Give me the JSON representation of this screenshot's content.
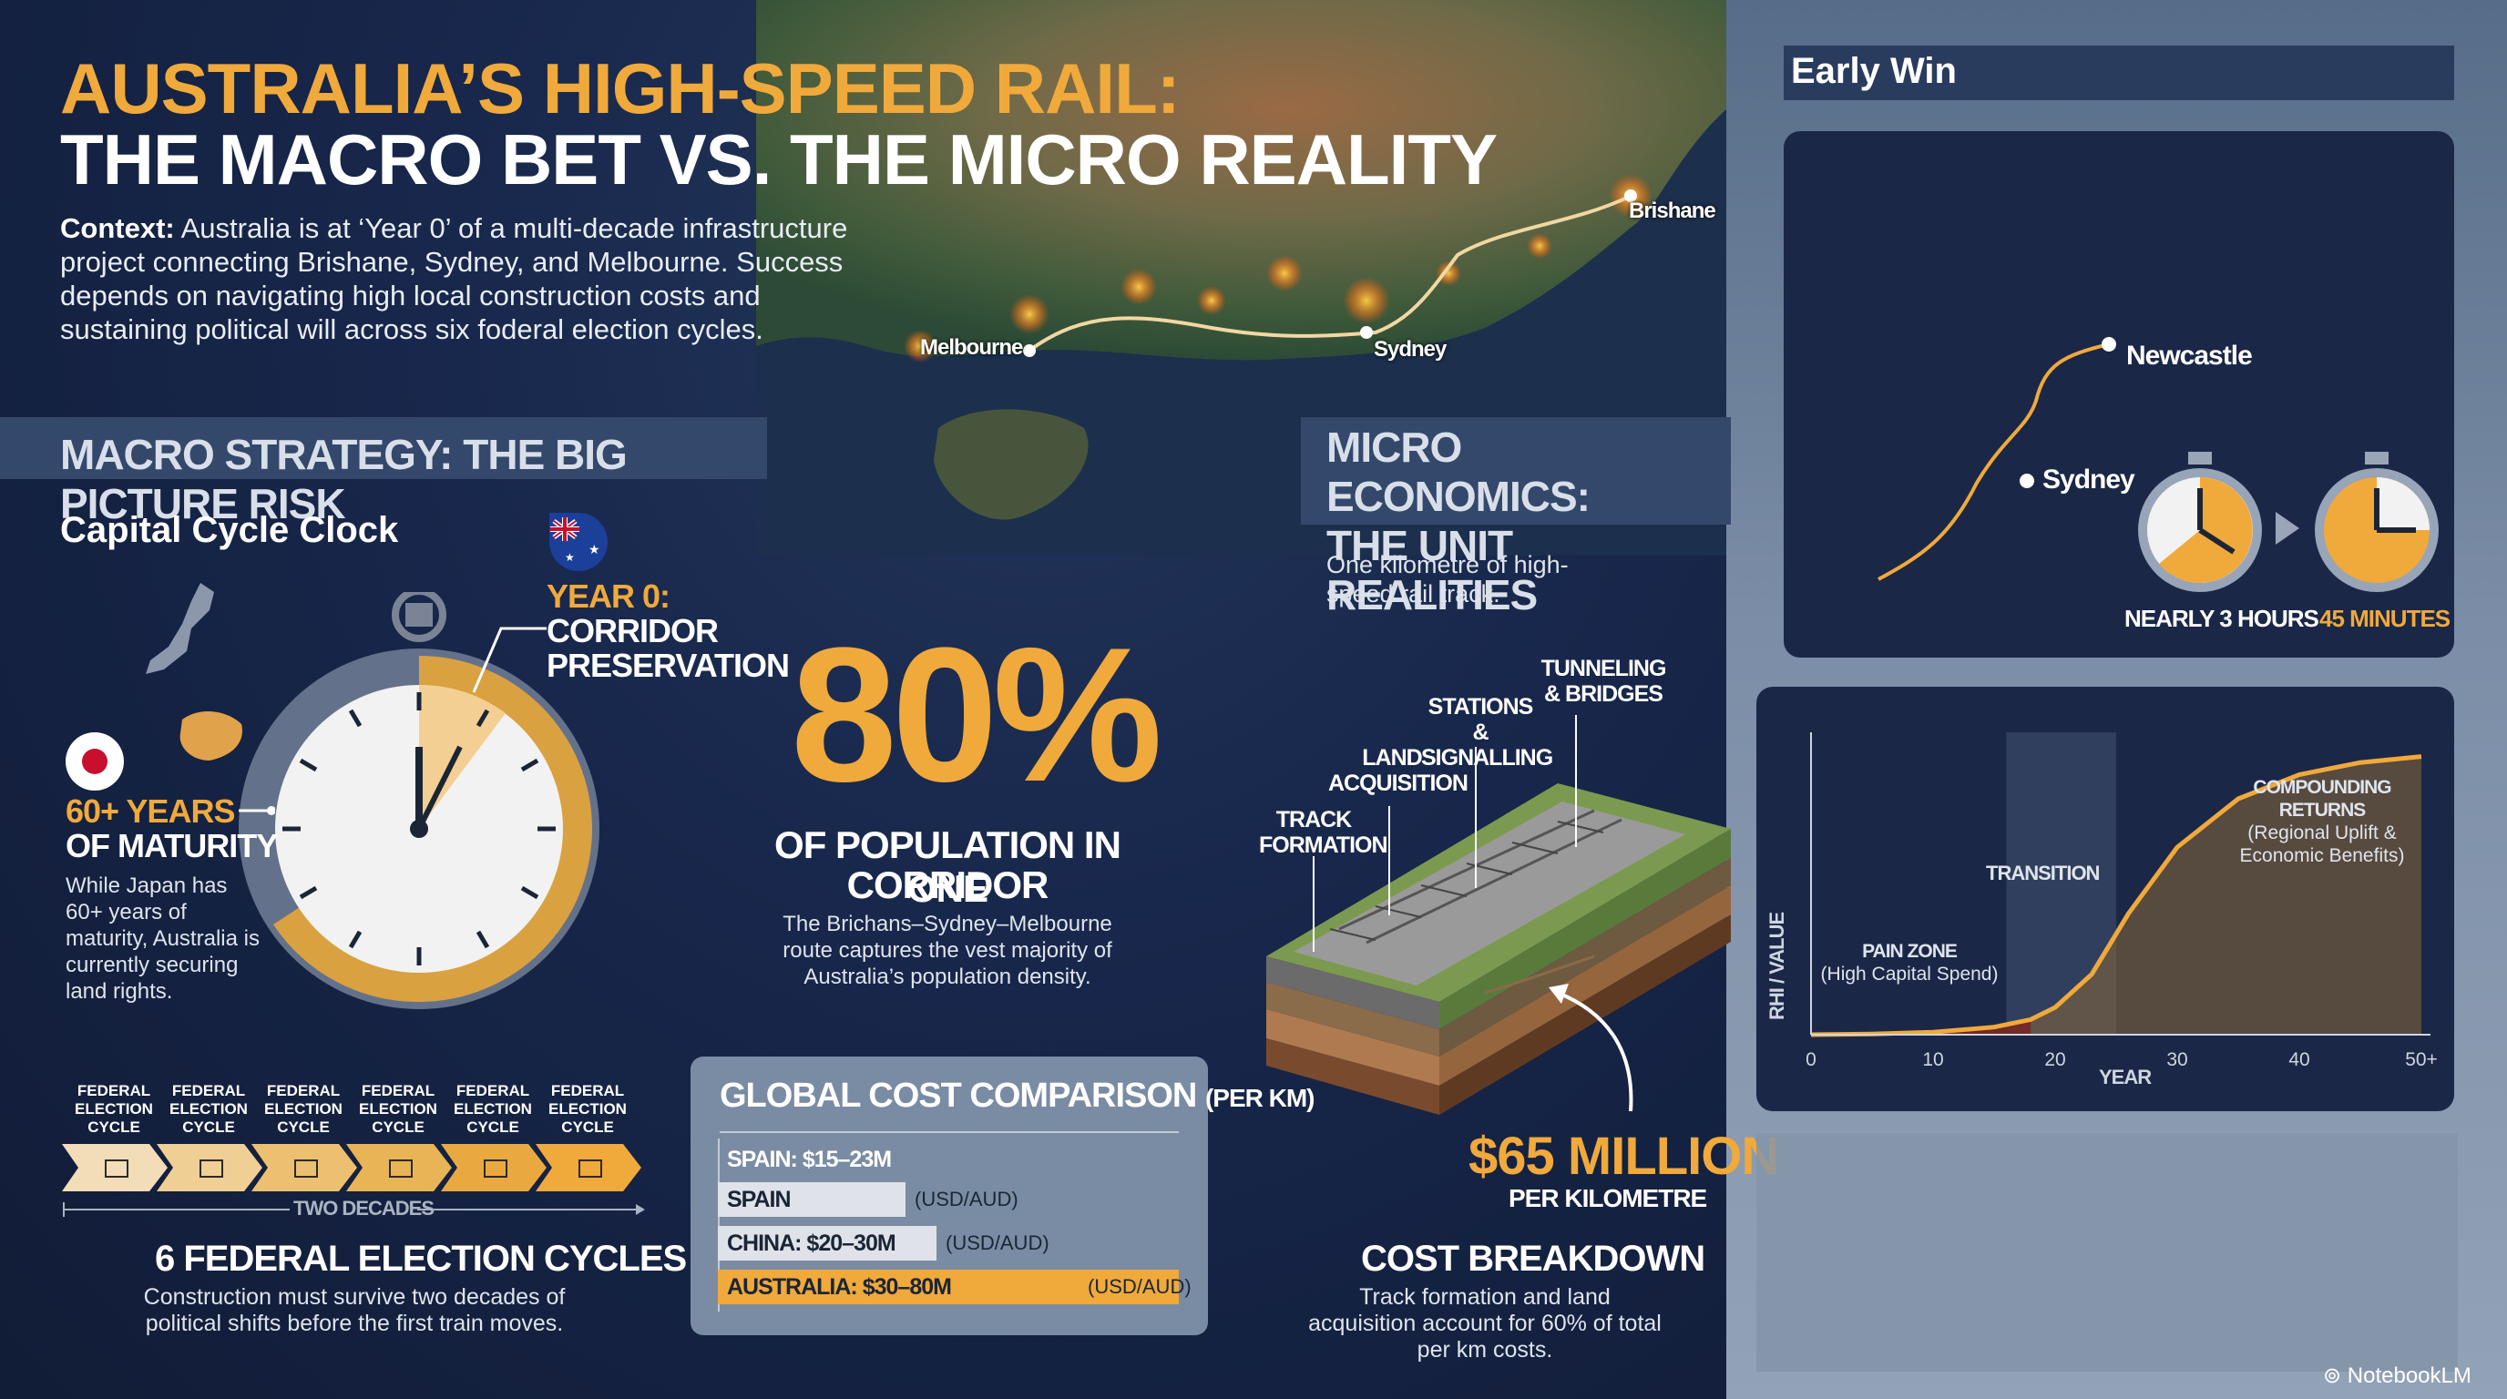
{
  "header": {
    "title_line1": "AUSTRALIA’S HIGH-SPEED RAIL:",
    "title_line2": "THE MACRO BET VS. THE MICRO REALITY",
    "context_label": "Context:",
    "context_text": " Australia is at ‘Year 0’ of a multi-decade infrastructure project connecting Brishane, Sydney, and Melbourne. Success depends on navigating high local construction costs and sustaining political will across six foderal election cycles."
  },
  "map": {
    "cities": [
      "Brishane",
      "Sydney",
      "Melbourne"
    ]
  },
  "macro": {
    "section_title": "MACRO STRATEGY: THE BIG PICTURE RISK",
    "clock_title": "Capital Cycle Clock",
    "year0_line1": "YEAR 0:",
    "year0_line2": "CORRIDOR",
    "year0_line3": "PRESERVATION",
    "japan_line1": "60+ YEARS",
    "japan_line2": "OF MATURITY",
    "japan_note": "While Japan has 60+ years of maturity, Australia is currently securing land rights.",
    "cycle_label_line1": "FEDERAL",
    "cycle_label_line2": "ELECTION",
    "cycle_label_line3": "CYCLE",
    "two_decades": "TWO DECADES",
    "cycles_title": "6 FEDERAL ELECTION CYCLES",
    "cycles_note": "Construction must survive two decades of political shifts before the first train moves."
  },
  "population": {
    "percent": "80%",
    "label_line1": "OF POPULATION IN ONE",
    "label_line2": "CORRIDOR",
    "note": "The Brichans–Sydney–Melbourne route captures the vest majority of Australia’s population density."
  },
  "cost_comparison": {
    "title": "GLOBAL COST COMPARISON",
    "title_suffix": "(PER KM)",
    "rows": [
      {
        "label": "SPAIN: $15–23M",
        "unit": ""
      },
      {
        "label": "SPAIN",
        "unit": "(USD/AUD)"
      },
      {
        "label": "CHINA: $20–30M",
        "unit": "(USD/AUD)"
      },
      {
        "label": "AUSTRALIA: $30–80M",
        "unit": "(USD/AUD)"
      }
    ]
  },
  "micro": {
    "section_line1": "MICRO ECONOMICS:",
    "section_line2": "THE UNIT REALITIES",
    "intro": "One kilometre of high-speed rail track.",
    "layers": [
      "TRACK FORMATION",
      "LAND ACQUISITION",
      "STATIONS & SIGNALLING",
      "TUNNELING & BRIDGES"
    ],
    "price": "$65 MILLION",
    "price_unit": "PER KILOMETRE",
    "breakdown_title": "COST BREAKDOWN",
    "breakdown_note": "Track formation and land acquisition account for 60% of total per km costs."
  },
  "early_win": {
    "title": "Early Win",
    "city_a": "Newcastle",
    "city_b": "Sydney",
    "time_before": "NEARLY 3 HOURS",
    "time_after": "45 MINUTES"
  },
  "chart_data": {
    "type": "area",
    "ylabel": "RHI / VALUE",
    "xlabel": "YEAR",
    "x_ticks": [
      0,
      10,
      20,
      30,
      40,
      "50+"
    ],
    "xlim": [
      0,
      50
    ],
    "annotations": [
      {
        "text_line1": "PAIN ZONE",
        "text_line2": "(High Capital Spend)"
      },
      {
        "text_line1": "TRANSITION",
        "text_line2": ""
      },
      {
        "text_line1": "COMPOUNDING RETURNS",
        "text_line2": "(Regional Uplift &",
        "text_line3": "Economic Benefits)"
      }
    ],
    "transition_band": [
      16,
      25
    ],
    "curve": {
      "x": [
        0,
        5,
        10,
        15,
        18,
        20,
        23,
        26,
        30,
        35,
        40,
        45,
        50
      ],
      "y": [
        0,
        0.2,
        0.8,
        2.5,
        5,
        9,
        20,
        40,
        62,
        78,
        86,
        90,
        92
      ]
    },
    "ylim": [
      0,
      100
    ]
  },
  "footer": {
    "brand": "NotebookLM"
  },
  "colors": {
    "accent": "#f0a93b",
    "navy": "#16233f",
    "panel": "#1a2747"
  }
}
